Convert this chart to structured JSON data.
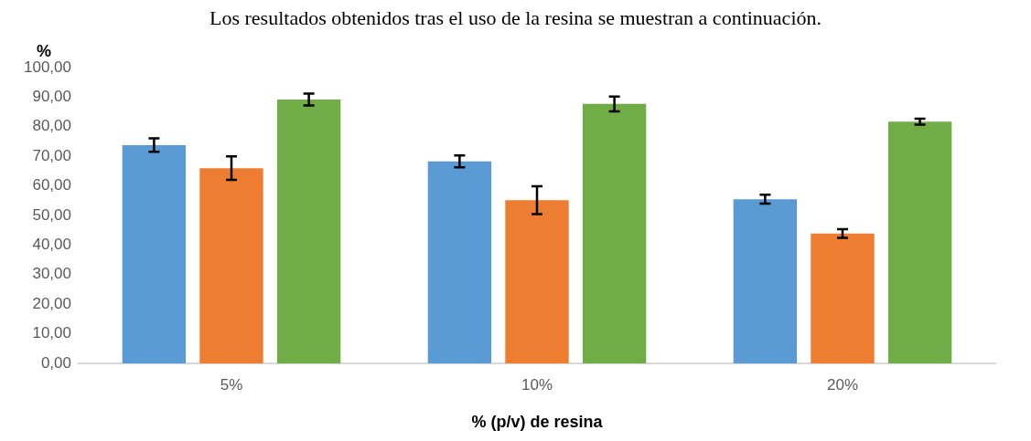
{
  "chart_data": {
    "type": "bar",
    "title": "Los resultados obtenidos tras el uso de la resina se muestran a continuación.",
    "xlabel": "% (p/v) de resina",
    "ylabel": "%",
    "categories": [
      "5%",
      "10%",
      "20%"
    ],
    "series": [
      {
        "color": "#5b9bd5",
        "values": [
          73.8,
          68.3,
          55.5
        ],
        "errors": [
          2.3,
          2,
          1.5
        ]
      },
      {
        "color": "#ed7d31",
        "values": [
          66,
          55.2,
          43.9
        ],
        "errors": [
          4,
          4.7,
          1.5
        ]
      },
      {
        "color": "#70ad47",
        "values": [
          89.2,
          87.7,
          81.7
        ],
        "errors": [
          2,
          2.5,
          1
        ]
      }
    ],
    "ylim": [
      0,
      100
    ],
    "yticks": [
      {
        "value": 0,
        "label": "0,00"
      },
      {
        "value": 10,
        "label": "10,00"
      },
      {
        "value": 20,
        "label": "20,00"
      },
      {
        "value": 30,
        "label": "30,00"
      },
      {
        "value": 40,
        "label": "40,00"
      },
      {
        "value": 50,
        "label": "50,00"
      },
      {
        "value": 60,
        "label": "60,00"
      },
      {
        "value": 70,
        "label": "70,00"
      },
      {
        "value": 80,
        "label": "80,00"
      },
      {
        "value": 90,
        "label": "90,00"
      },
      {
        "value": 100,
        "label": "100,00"
      }
    ],
    "grid": false,
    "legend": false
  }
}
